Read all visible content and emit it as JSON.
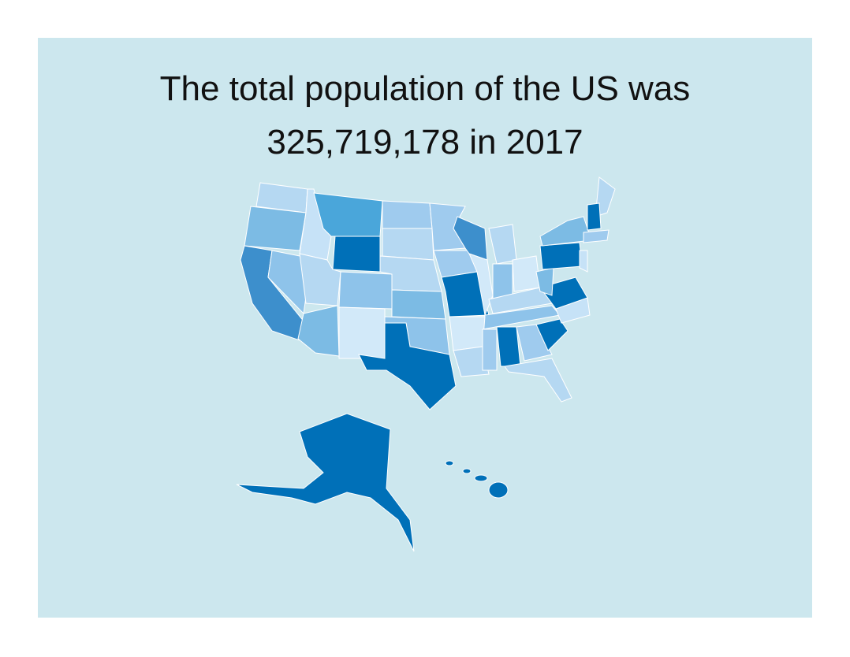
{
  "slide": {
    "title_lines": [
      "The total population of the US was",
      "325,719,178 in 2017"
    ]
  }
}
